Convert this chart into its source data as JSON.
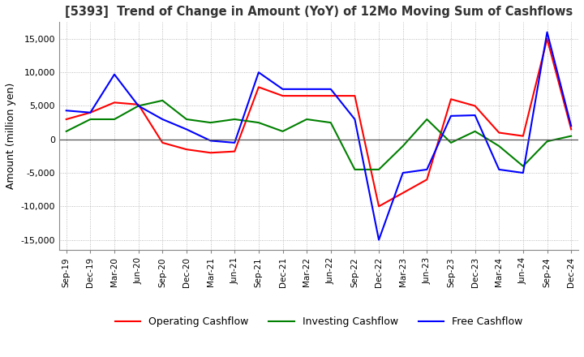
{
  "title": "[5393]  Trend of Change in Amount (YoY) of 12Mo Moving Sum of Cashflows",
  "ylabel": "Amount (million yen)",
  "ylim": [
    -16500,
    17500
  ],
  "yticks": [
    -15000,
    -10000,
    -5000,
    0,
    5000,
    10000,
    15000
  ],
  "background_color": "#ffffff",
  "grid_color": "#aaaaaa",
  "x_labels": [
    "Sep-19",
    "Dec-19",
    "Mar-20",
    "Jun-20",
    "Sep-20",
    "Dec-20",
    "Mar-21",
    "Jun-21",
    "Sep-21",
    "Dec-21",
    "Mar-22",
    "Jun-22",
    "Sep-22",
    "Dec-22",
    "Mar-23",
    "Jun-23",
    "Sep-23",
    "Dec-23",
    "Mar-24",
    "Jun-24",
    "Sep-24",
    "Dec-24"
  ],
  "operating": [
    3000,
    4000,
    5500,
    5200,
    -500,
    -1500,
    -2000,
    -1800,
    7800,
    6500,
    6500,
    6500,
    6500,
    -10000,
    -8000,
    -6000,
    6000,
    5000,
    1000,
    500,
    15000,
    1500
  ],
  "investing": [
    1200,
    3000,
    3000,
    5000,
    5800,
    3000,
    2500,
    3000,
    2500,
    1200,
    3000,
    2500,
    -4500,
    -4500,
    -1000,
    3000,
    -500,
    1200,
    -1000,
    -4000,
    -300,
    500
  ],
  "free": [
    4300,
    4000,
    9700,
    5000,
    3000,
    1500,
    -200,
    -500,
    10000,
    7500,
    7500,
    7500,
    3000,
    -15000,
    -5000,
    -4500,
    3500,
    3600,
    -4500,
    -5000,
    16000,
    2000
  ],
  "op_color": "#ff0000",
  "inv_color": "#008000",
  "free_color": "#0000ff",
  "line_width": 1.5
}
